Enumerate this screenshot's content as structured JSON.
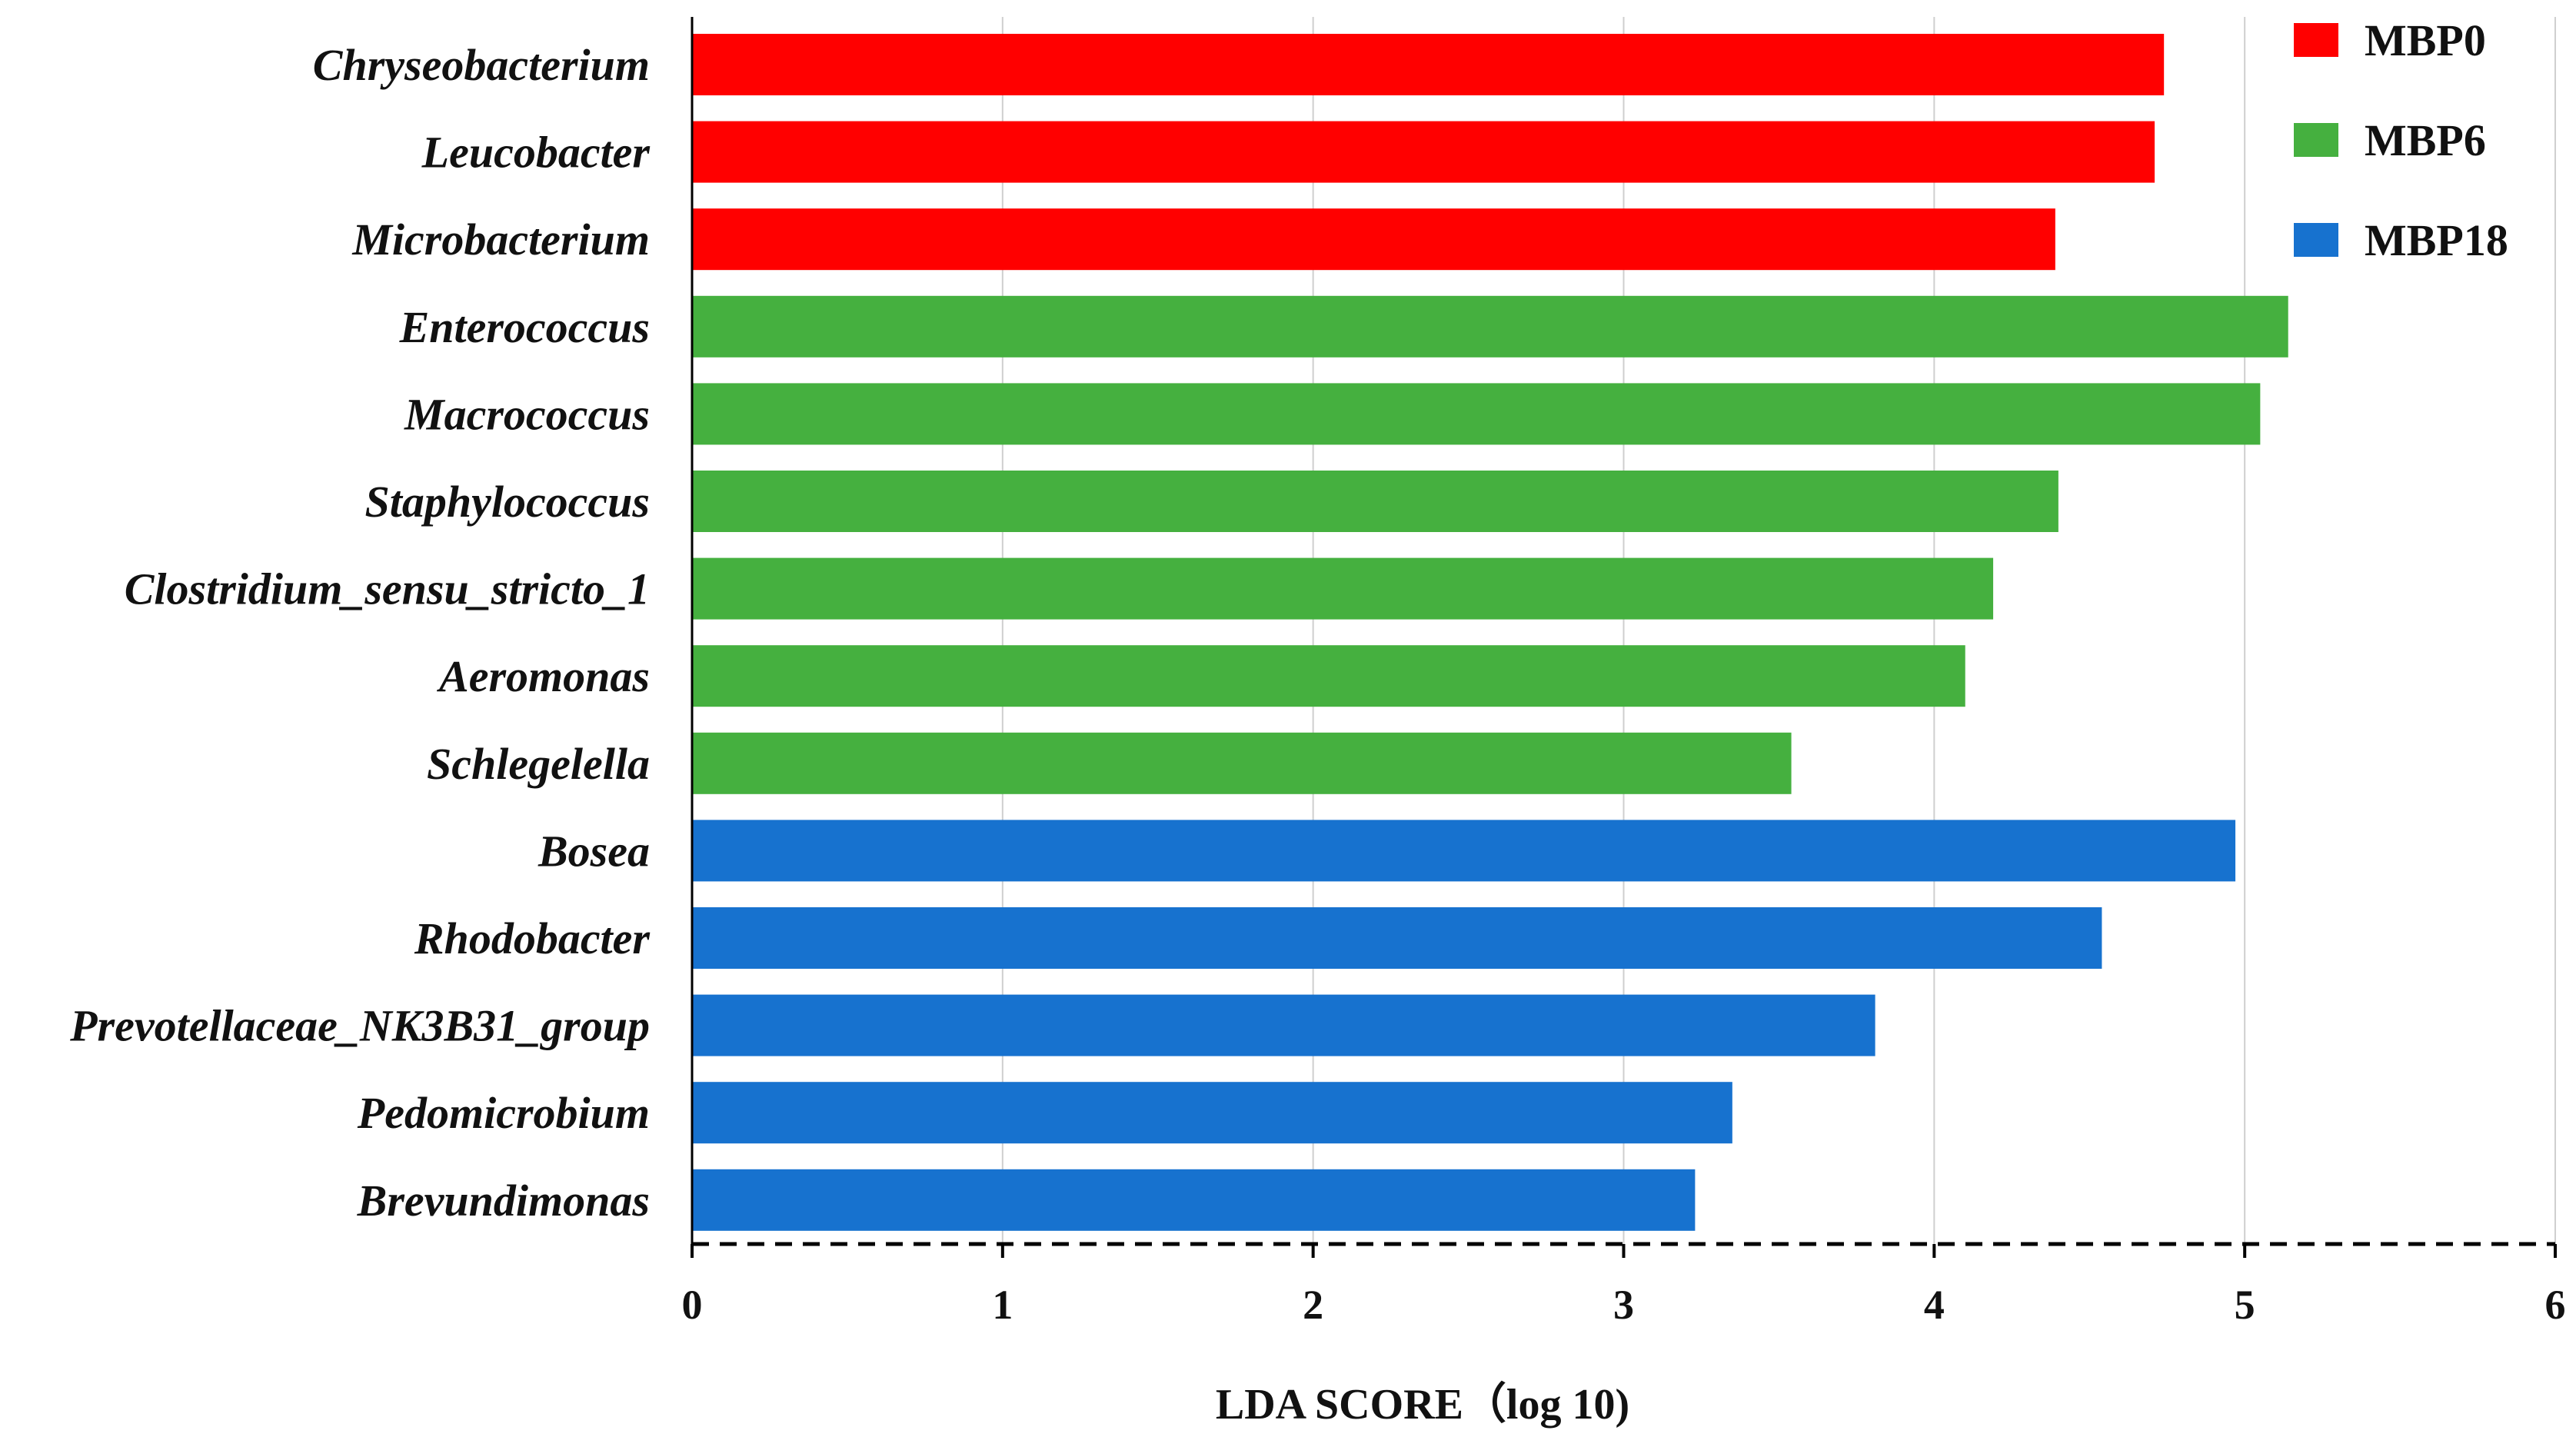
{
  "chart_data": {
    "type": "bar",
    "orientation": "horizontal",
    "title": "",
    "xlabel": "LDA  SCORE（log 10)",
    "ylabel": "",
    "xlim": [
      0,
      6
    ],
    "xticks": [
      "0",
      "1",
      "2",
      "3",
      "4",
      "5",
      "6"
    ],
    "grid": true,
    "legend_position": "top-right",
    "groups": [
      {
        "name": "MBP0",
        "color": "#ff0000"
      },
      {
        "name": "MBP6",
        "color": "#45b03f"
      },
      {
        "name": "MBP18",
        "color": "#1772cf"
      }
    ],
    "bars": [
      {
        "label": "Chryseobacterium",
        "value": 4.74,
        "group": "MBP0"
      },
      {
        "label": "Leucobacter",
        "value": 4.71,
        "group": "MBP0"
      },
      {
        "label": "Microbacterium",
        "value": 4.39,
        "group": "MBP0"
      },
      {
        "label": "Enterococcus",
        "value": 5.14,
        "group": "MBP6"
      },
      {
        "label": "Macrococcus",
        "value": 5.05,
        "group": "MBP6"
      },
      {
        "label": "Staphylococcus",
        "value": 4.4,
        "group": "MBP6"
      },
      {
        "label": "Clostridium_sensu_stricto_1",
        "value": 4.19,
        "group": "MBP6"
      },
      {
        "label": "Aeromonas",
        "value": 4.1,
        "group": "MBP6"
      },
      {
        "label": "Schlegelella",
        "value": 3.54,
        "group": "MBP6"
      },
      {
        "label": "Bosea",
        "value": 4.97,
        "group": "MBP18"
      },
      {
        "label": "Rhodobacter",
        "value": 4.54,
        "group": "MBP18"
      },
      {
        "label": "Prevotellaceae_NK3B31_group",
        "value": 3.81,
        "group": "MBP18"
      },
      {
        "label": "Pedomicrobium",
        "value": 3.35,
        "group": "MBP18"
      },
      {
        "label": "Brevundimonas",
        "value": 3.23,
        "group": "MBP18"
      }
    ]
  }
}
